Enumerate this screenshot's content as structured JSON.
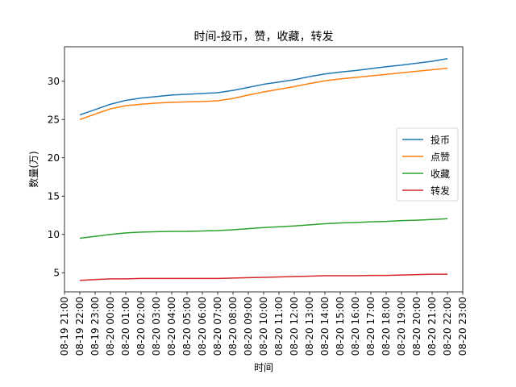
{
  "chart_data": {
    "type": "line",
    "title": "时间-投币，赞，收藏，转发",
    "xlabel": "时间",
    "ylabel": "数量(万)",
    "x": [
      "08-19 22:00",
      "08-19 23:00",
      "08-20 00:00",
      "08-20 01:00",
      "08-20 02:00",
      "08-20 03:00",
      "08-20 04:00",
      "08-20 05:00",
      "08-20 06:00",
      "08-20 07:00",
      "08-20 08:00",
      "08-20 09:00",
      "08-20 10:00",
      "08-20 11:00",
      "08-20 12:00",
      "08-20 13:00",
      "08-20 14:00",
      "08-20 15:00",
      "08-20 16:00",
      "08-20 17:00",
      "08-20 18:00",
      "08-20 19:00",
      "08-20 20:00",
      "08-20 21:00",
      "08-20 22:00"
    ],
    "xticks": [
      "08-19 21:00",
      "08-19 22:00",
      "08-19 23:00",
      "08-20 00:00",
      "08-20 01:00",
      "08-20 02:00",
      "08-20 03:00",
      "08-20 04:00",
      "08-20 05:00",
      "08-20 06:00",
      "08-20 07:00",
      "08-20 08:00",
      "08-20 09:00",
      "08-20 10:00",
      "08-20 11:00",
      "08-20 12:00",
      "08-20 13:00",
      "08-20 14:00",
      "08-20 15:00",
      "08-20 16:00",
      "08-20 17:00",
      "08-20 18:00",
      "08-20 19:00",
      "08-20 20:00",
      "08-20 21:00",
      "08-20 22:00",
      "08-20 23:00"
    ],
    "xlim": [
      "08-19 21:00",
      "08-20 23:00"
    ],
    "yticks": [
      5,
      10,
      15,
      20,
      25,
      30
    ],
    "ylim": [
      2.5,
      34.5
    ],
    "series": [
      {
        "name": "投币",
        "color": "#1f77b4",
        "values": [
          25.6,
          26.3,
          27.0,
          27.5,
          27.8,
          28.0,
          28.2,
          28.3,
          28.4,
          28.5,
          28.8,
          29.2,
          29.6,
          29.9,
          30.2,
          30.6,
          30.95,
          31.2,
          31.4,
          31.65,
          31.9,
          32.1,
          32.35,
          32.6,
          32.95
        ]
      },
      {
        "name": "点赞",
        "color": "#ff7f0e",
        "values": [
          25.0,
          25.7,
          26.4,
          26.8,
          27.0,
          27.15,
          27.25,
          27.3,
          27.35,
          27.45,
          27.75,
          28.2,
          28.6,
          28.95,
          29.3,
          29.7,
          30.05,
          30.3,
          30.5,
          30.7,
          30.9,
          31.1,
          31.3,
          31.5,
          31.7
        ]
      },
      {
        "name": "收藏",
        "color": "#2ca02c",
        "values": [
          9.5,
          9.75,
          10.0,
          10.2,
          10.3,
          10.35,
          10.4,
          10.4,
          10.45,
          10.5,
          10.6,
          10.75,
          10.9,
          11.0,
          11.1,
          11.25,
          11.4,
          11.5,
          11.55,
          11.65,
          11.7,
          11.8,
          11.85,
          11.95,
          12.05
        ]
      },
      {
        "name": "转发",
        "color": "#d62728",
        "values": [
          4.0,
          4.1,
          4.2,
          4.2,
          4.25,
          4.25,
          4.25,
          4.25,
          4.25,
          4.25,
          4.3,
          4.35,
          4.4,
          4.45,
          4.5,
          4.55,
          4.6,
          4.6,
          4.6,
          4.65,
          4.65,
          4.7,
          4.75,
          4.8,
          4.8
        ]
      }
    ],
    "legend": {
      "placement": "center-right"
    },
    "grid": false
  }
}
